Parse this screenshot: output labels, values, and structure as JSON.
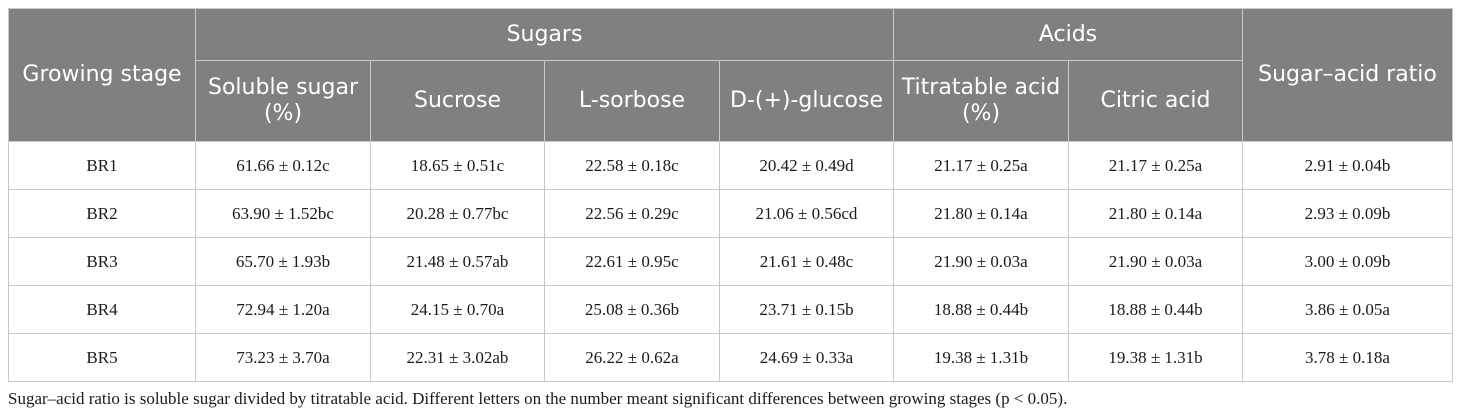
{
  "header": {
    "growing_stage": "Growing stage",
    "sugars": "Sugars",
    "acids": "Acids",
    "ratio": "Sugar–acid ratio",
    "columns": [
      "Soluble sugar (%)",
      "Sucrose",
      "L-sorbose",
      "D-(+)-glucose",
      "Titratable acid (%)",
      "Citric acid"
    ]
  },
  "rows": [
    {
      "stage": "BR1",
      "values": [
        "61.66 ± 0.12c",
        "18.65 ± 0.51c",
        "22.58 ± 0.18c",
        "20.42 ± 0.49d",
        "21.17 ± 0.25a",
        "21.17 ± 0.25a",
        "2.91 ± 0.04b"
      ]
    },
    {
      "stage": "BR2",
      "values": [
        "63.90 ± 1.52bc",
        "20.28 ± 0.77bc",
        "22.56 ± 0.29c",
        "21.06 ± 0.56cd",
        "21.80 ± 0.14a",
        "21.80 ± 0.14a",
        "2.93 ± 0.09b"
      ]
    },
    {
      "stage": "BR3",
      "values": [
        "65.70 ± 1.93b",
        "21.48 ± 0.57ab",
        "22.61 ± 0.95c",
        "21.61 ± 0.48c",
        "21.90 ± 0.03a",
        "21.90 ± 0.03a",
        "3.00 ± 0.09b"
      ]
    },
    {
      "stage": "BR4",
      "values": [
        "72.94 ± 1.20a",
        "24.15 ± 0.70a",
        "25.08 ± 0.36b",
        "23.71 ± 0.15b",
        "18.88 ± 0.44b",
        "18.88 ± 0.44b",
        "3.86 ± 0.05a"
      ]
    },
    {
      "stage": "BR5",
      "values": [
        "73.23 ± 3.70a",
        "22.31 ± 3.02ab",
        "26.22 ± 0.62a",
        "24.69 ± 0.33a",
        "19.38 ± 1.31b",
        "19.38 ± 1.31b",
        "3.78 ± 0.18a"
      ]
    }
  ],
  "footnote": "Sugar–acid ratio is soluble sugar divided by titratable acid. Different letters on the number meant significant differences between growing stages (p < 0.05)."
}
